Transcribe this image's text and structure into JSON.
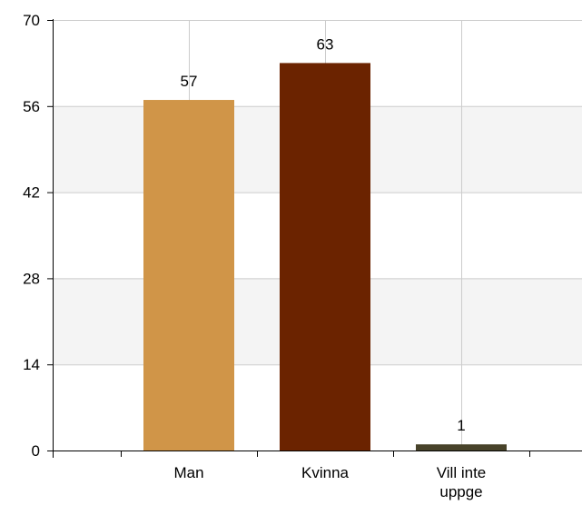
{
  "chart_data": {
    "type": "bar",
    "title": "",
    "xlabel": "",
    "ylabel": "",
    "categories": [
      "Man",
      "Kvinna",
      "Vill inte uppge"
    ],
    "category_lines": [
      [
        "Man"
      ],
      [
        "Kvinna"
      ],
      [
        "Vill inte",
        "uppge"
      ]
    ],
    "values": [
      57,
      63,
      1
    ],
    "data_labels": [
      "57",
      "63",
      "1"
    ],
    "ylim": [
      0,
      70
    ],
    "yticks": [
      0,
      14,
      28,
      42,
      56,
      70
    ],
    "ytick_labels": [
      "0",
      "14",
      "28",
      "42",
      "56",
      "70"
    ],
    "bar_colors": [
      "#D09548",
      "#6B2300",
      "#48432A"
    ],
    "band_color": "#F4F4F4",
    "grid": true,
    "legend": "none"
  }
}
